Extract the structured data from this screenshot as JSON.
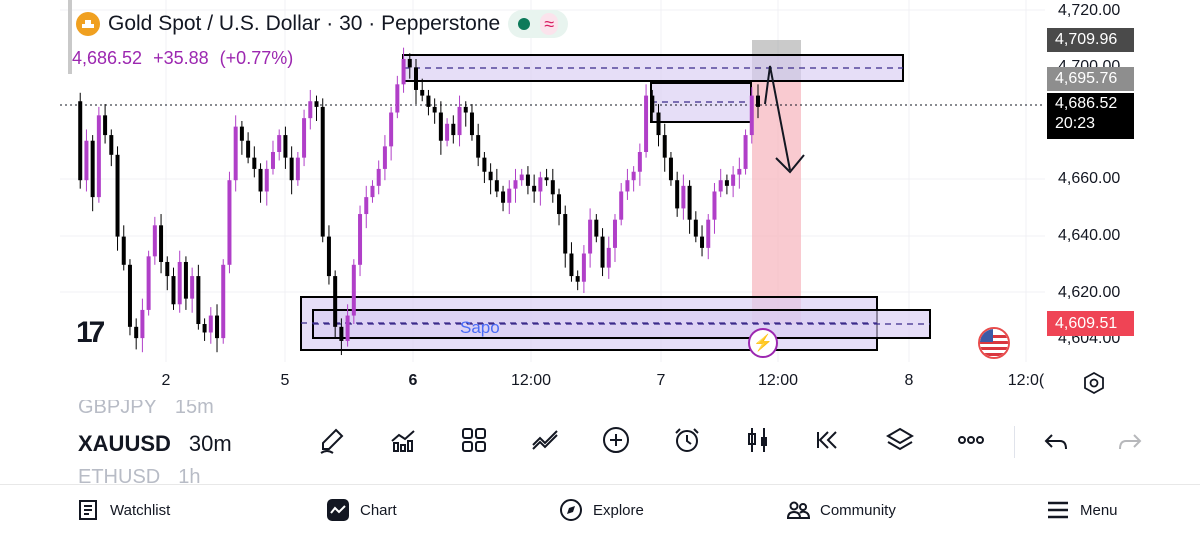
{
  "header": {
    "title": "Gold Spot / U.S. Dollar · 30 · Pepperstone",
    "last_price": "4,686.52",
    "change": "+35.88",
    "change_pct": "(+0.77%)",
    "logo_icon": "gold-coin-icon",
    "market_status_icon": "market-open-dot-icon",
    "waves_icon": "waves-icon"
  },
  "y_axis": {
    "labels": [
      "4,720.00",
      "4,700.00",
      "4,660.00",
      "4,640.00",
      "4,620.00",
      "4,604.00"
    ],
    "tags": {
      "upper_box_top": "4,709.96",
      "upper_box_bottom": "4,695.76",
      "current_price": "4,686.52",
      "countdown": "20:23",
      "lower_tag": "4,609.51"
    }
  },
  "x_axis": {
    "labels": [
      "2",
      "5",
      "6",
      "12:00",
      "7",
      "12:00",
      "8",
      "12:0("
    ]
  },
  "drawings": {
    "zone_label": "Sapo"
  },
  "colors": {
    "bull_candle": "#b03fc8",
    "bear_candle": "#000000",
    "zone_fill": "#d8ccf2",
    "short_loss": "#9e9e9e",
    "short_profit": "#f7b8c0",
    "current_price_tag": "#000000",
    "lower_tag": "#ef4455"
  },
  "toolbar": {
    "symbols": [
      {
        "symbol": "GBPJPY",
        "timeframe": "15m"
      },
      {
        "symbol": "XAUUSD",
        "timeframe": "30m"
      },
      {
        "symbol": "ETHUSD",
        "timeframe": "1h"
      }
    ],
    "tools": [
      "pencil-icon",
      "indicators-icon",
      "layout-grid-icon",
      "drawing-tools-icon",
      "add-icon",
      "alarm-icon",
      "candle-type-icon",
      "replay-icon",
      "layers-icon",
      "more-icon"
    ],
    "undo_icon": "undo-icon",
    "redo_icon": "redo-icon"
  },
  "bottom_nav": [
    {
      "label": "Watchlist",
      "icon": "watchlist-icon"
    },
    {
      "label": "Chart",
      "icon": "chart-icon"
    },
    {
      "label": "Explore",
      "icon": "compass-icon"
    },
    {
      "label": "Community",
      "icon": "community-icon"
    },
    {
      "label": "Menu",
      "icon": "hamburger-menu-icon"
    }
  ]
}
